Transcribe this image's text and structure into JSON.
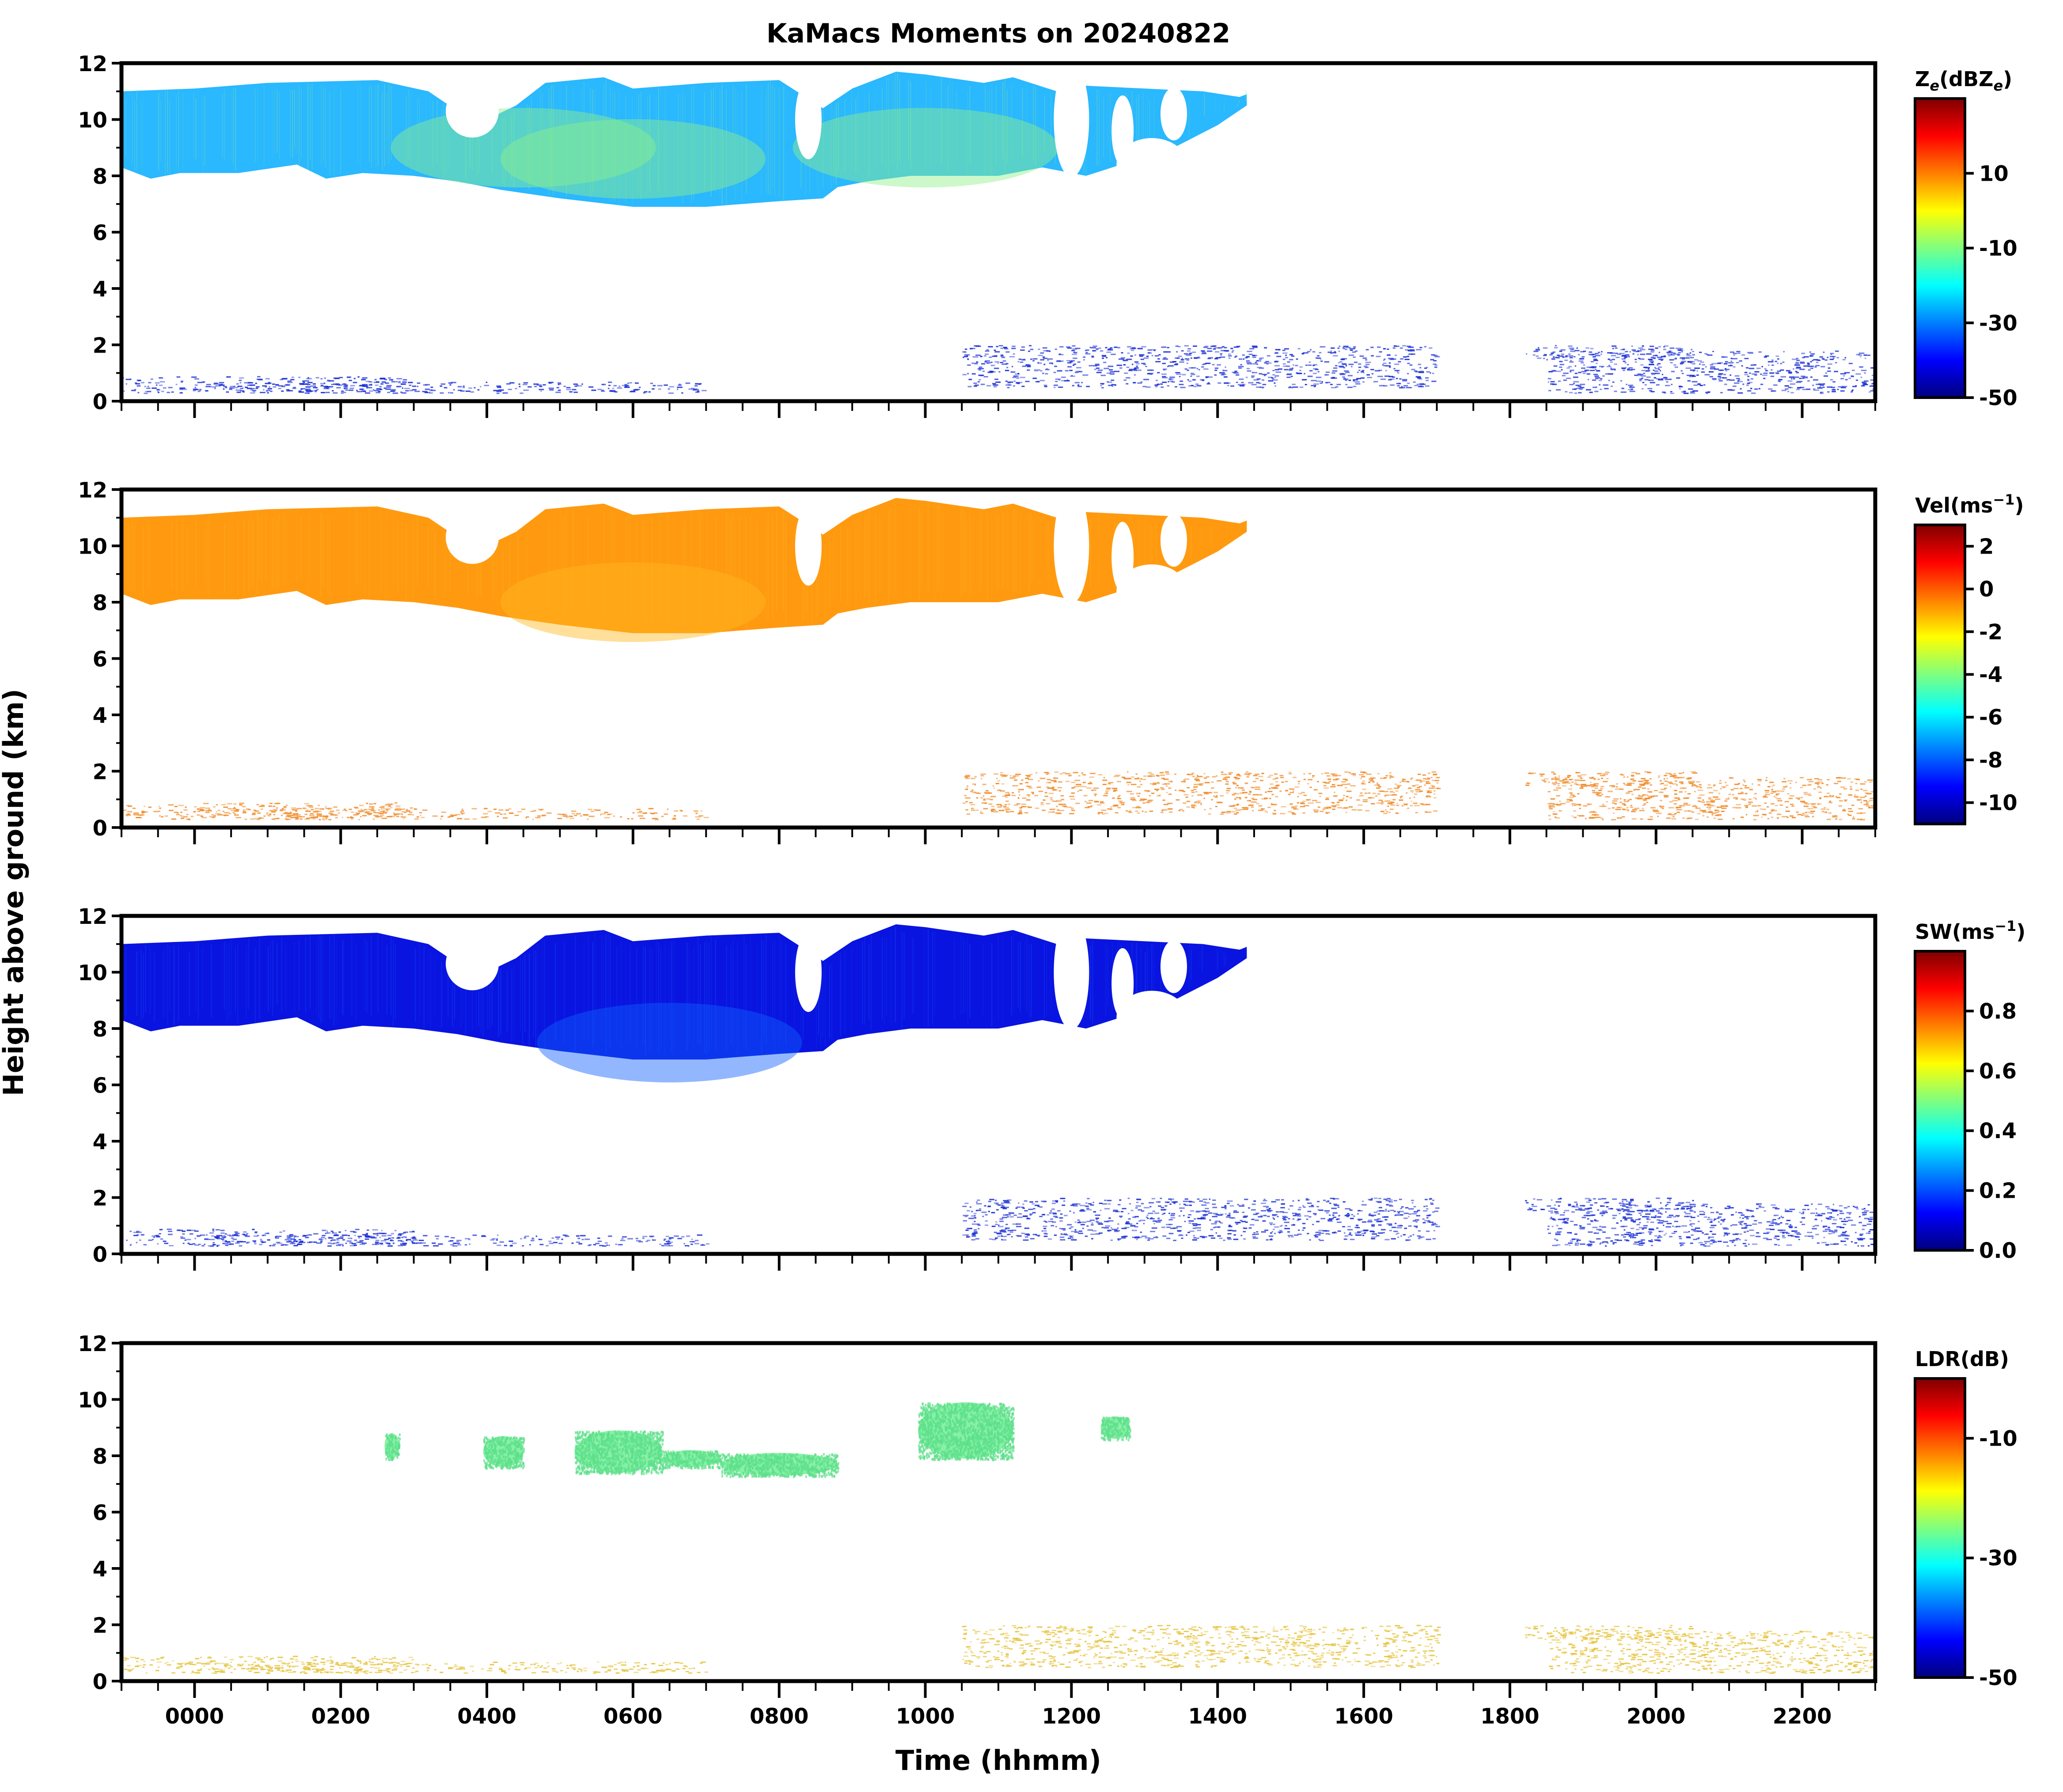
{
  "figure": {
    "title": "KaMacs Moments on 20240822",
    "ylabel": "Height above ground (km)",
    "xlabel": "Time (hhmm)"
  },
  "chart_data": {
    "type": "heatmap",
    "title": "KaMacs Moments on 20240822",
    "xlabel": "Time (hhmm)",
    "ylabel": "Height above ground (km)",
    "xlim": [
      -100,
      2300
    ],
    "ylim": [
      0,
      12
    ],
    "x_ticks": [
      0,
      200,
      400,
      600,
      800,
      1000,
      1200,
      1400,
      1600,
      1800,
      2000,
      2200
    ],
    "x_tick_labels": [
      "0000",
      "0200",
      "0400",
      "0600",
      "0800",
      "1000",
      "1200",
      "1400",
      "1600",
      "1800",
      "2000",
      "2200"
    ],
    "y_ticks": [
      0,
      2,
      4,
      6,
      8,
      10,
      12
    ],
    "y_tick_labels": [
      "0",
      "2",
      "4",
      "6",
      "8",
      "10",
      "12"
    ],
    "colormap": [
      "#00007f",
      "#0000ff",
      "#007fff",
      "#00ffff",
      "#7fff7f",
      "#ffff00",
      "#ff7f00",
      "#ff0000",
      "#7f0000"
    ],
    "panels": [
      {
        "name": "Ze",
        "colorbar_label": "Ze(dBZe)",
        "colorbar_label_main": "Z",
        "colorbar_label_sub": "e",
        "colorbar_label_unit": "(dBZ",
        "colorbar_label_unit_sub": "e",
        "colorbar_label_close": ")",
        "vmin": -50,
        "vmax": 30,
        "colorbar_ticks": [
          -50,
          -30,
          -10,
          10
        ],
        "colorbar_tick_labels": [
          "-50",
          "-30",
          "-10",
          "10"
        ],
        "cloud_color": "#2ab8ff",
        "core_color": "#8ef08a",
        "clutter_color": "#1a2fd6",
        "cores": [
          [
            600,
            8.6
          ],
          [
            1000,
            9.0
          ],
          [
            450,
            9.0
          ]
        ]
      },
      {
        "name": "Vel",
        "colorbar_label": "Vel(ms-1)",
        "colorbar_label_main": "Vel(ms",
        "colorbar_label_sup": "−1",
        "colorbar_label_close": ")",
        "vmin": -11,
        "vmax": 3,
        "colorbar_ticks": [
          -10,
          -8,
          -6,
          -4,
          -2,
          0,
          2
        ],
        "colorbar_tick_labels": [
          "-10",
          "-8",
          "-6",
          "-4",
          "-2",
          "0",
          "2"
        ],
        "cloud_color": "#ff9a10",
        "core_color": "#ffb820",
        "clutter_color": "#f08a28",
        "cores": [
          [
            600,
            8.0
          ]
        ]
      },
      {
        "name": "SW",
        "colorbar_label": "SW(ms-1)",
        "colorbar_label_main": "SW(ms",
        "colorbar_label_sup": "−1",
        "colorbar_label_close": ")",
        "vmin": 0.0,
        "vmax": 1.0,
        "colorbar_ticks": [
          0.0,
          0.2,
          0.4,
          0.6,
          0.8
        ],
        "colorbar_tick_labels": [
          "0.0",
          "0.2",
          "0.4",
          "0.6",
          "0.8"
        ],
        "cloud_color": "#0a14e0",
        "core_color": "#1060ff",
        "clutter_color": "#1a2fd6",
        "cores": [
          [
            650,
            7.5
          ]
        ]
      },
      {
        "name": "LDR",
        "colorbar_label": "LDR(dB)",
        "colorbar_label_main": "LDR(dB)",
        "vmin": -50,
        "vmax": 0,
        "colorbar_ticks": [
          -50,
          -30,
          -10
        ],
        "colorbar_tick_labels": [
          "-50",
          "-30",
          "-10"
        ],
        "cloud_color": "#72ee98",
        "core_color": "#72ee98",
        "clutter_color": "#e6c23a",
        "ldr_patches": [
          {
            "x0": 260,
            "x1": 280,
            "y0": 7.9,
            "y1": 8.8
          },
          {
            "x0": 395,
            "x1": 450,
            "y0": 7.6,
            "y1": 8.7
          },
          {
            "x0": 520,
            "x1": 640,
            "y0": 7.4,
            "y1": 8.9
          },
          {
            "x0": 640,
            "x1": 720,
            "y0": 7.6,
            "y1": 8.2
          },
          {
            "x0": 720,
            "x1": 880,
            "y0": 7.3,
            "y1": 8.1
          },
          {
            "x0": 990,
            "x1": 1120,
            "y0": 7.9,
            "y1": 9.9
          },
          {
            "x0": 1240,
            "x1": 1280,
            "y0": 8.6,
            "y1": 9.4
          }
        ]
      }
    ],
    "main_cloud_top_km": [
      [
        -100,
        11.0
      ],
      [
        0,
        11.1
      ],
      [
        100,
        11.3
      ],
      [
        250,
        11.4
      ],
      [
        320,
        11.0
      ],
      [
        360,
        10.3
      ],
      [
        400,
        10.0
      ],
      [
        440,
        10.5
      ],
      [
        480,
        11.3
      ],
      [
        560,
        11.5
      ],
      [
        600,
        11.1
      ],
      [
        700,
        11.3
      ],
      [
        800,
        11.4
      ],
      [
        860,
        10.4
      ],
      [
        900,
        11.1
      ],
      [
        960,
        11.7
      ],
      [
        1000,
        11.6
      ],
      [
        1080,
        11.3
      ],
      [
        1120,
        11.5
      ],
      [
        1180,
        11.0
      ],
      [
        1220,
        11.2
      ],
      [
        1300,
        11.1
      ],
      [
        1380,
        11.0
      ],
      [
        1430,
        10.8
      ],
      [
        1440,
        10.9
      ]
    ],
    "main_cloud_base_km": [
      [
        -100,
        8.3
      ],
      [
        -60,
        7.9
      ],
      [
        -20,
        8.1
      ],
      [
        60,
        8.1
      ],
      [
        140,
        8.4
      ],
      [
        180,
        7.9
      ],
      [
        230,
        8.1
      ],
      [
        300,
        8.0
      ],
      [
        360,
        7.8
      ],
      [
        420,
        7.5
      ],
      [
        500,
        7.2
      ],
      [
        600,
        6.9
      ],
      [
        700,
        6.9
      ],
      [
        800,
        7.1
      ],
      [
        860,
        7.2
      ],
      [
        880,
        7.6
      ],
      [
        920,
        7.8
      ],
      [
        980,
        8.0
      ],
      [
        1100,
        8.0
      ],
      [
        1160,
        8.3
      ],
      [
        1220,
        8.0
      ],
      [
        1280,
        8.5
      ],
      [
        1340,
        9.0
      ],
      [
        1400,
        9.8
      ],
      [
        1440,
        10.5
      ]
    ],
    "low_clutter_bands": [
      {
        "x0": -100,
        "x1": 300,
        "y0": 0.3,
        "y1": 0.9
      },
      {
        "x0": 0,
        "x1": 700,
        "y0": 0.3,
        "y1": 0.7
      },
      {
        "x0": 1050,
        "x1": 1700,
        "y0": 0.5,
        "y1": 2.0
      },
      {
        "x0": 1820,
        "x1": 2050,
        "y0": 1.5,
        "y1": 2.0
      },
      {
        "x0": 1850,
        "x1": 2300,
        "y0": 0.3,
        "y1": 1.8
      }
    ]
  }
}
